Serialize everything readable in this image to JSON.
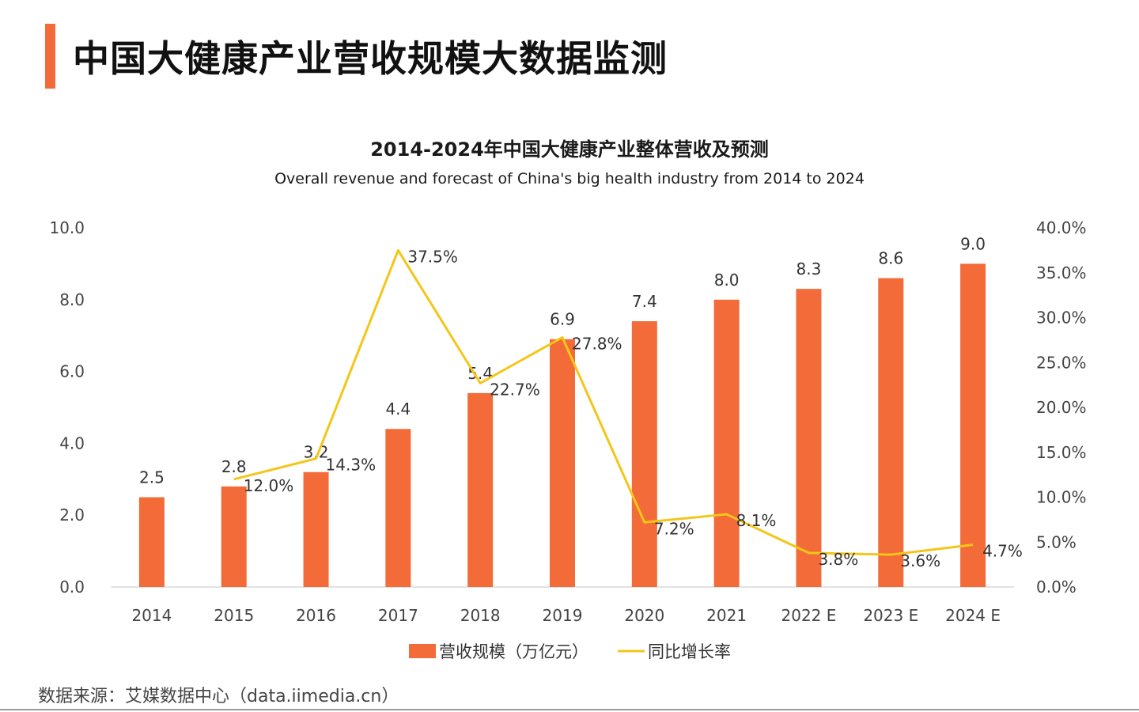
{
  "page": {
    "title": "中国大健康产业营收规模大数据监测",
    "source": "数据来源：艾媒数据中心（data.iimedia.cn）"
  },
  "colors": {
    "accent": "#f26b38",
    "bar": "#f26b38",
    "line": "#f5c518",
    "axis_text": "#444444",
    "baseline": "#d9d9d9"
  },
  "chart_data": {
    "type": "bar",
    "title": "2014-2024年中国大健康产业整体营收及预测",
    "subtitle": "Overall revenue and forecast of China's big health industry from 2014 to 2024",
    "categories": [
      "2014",
      "2015",
      "2016",
      "2017",
      "2018",
      "2019",
      "2020",
      "2021",
      "2022 E",
      "2023 E",
      "2024 E"
    ],
    "series": [
      {
        "name": "营收规模（万亿元）",
        "type": "bar",
        "axis": "left",
        "values": [
          2.5,
          2.8,
          3.2,
          4.4,
          5.4,
          6.9,
          7.4,
          8.0,
          8.3,
          8.6,
          9.0
        ],
        "labels": [
          "2.5",
          "2.8",
          "3.2",
          "4.4",
          "5.4",
          "6.9",
          "7.4",
          "8.0",
          "8.3",
          "8.6",
          "9.0"
        ]
      },
      {
        "name": "同比增长率",
        "type": "line",
        "axis": "right",
        "values": [
          null,
          12.0,
          14.3,
          37.5,
          22.7,
          27.8,
          7.2,
          8.1,
          3.8,
          3.6,
          4.7
        ],
        "labels": [
          "",
          "12.0%",
          "14.3%",
          "37.5%",
          "22.7%",
          "27.8%",
          "7.2%",
          "8.1%",
          "3.8%",
          "3.6%",
          "4.7%"
        ]
      }
    ],
    "y_left": {
      "ylim": [
        0,
        10
      ],
      "ticks": [
        "0.0",
        "2.0",
        "4.0",
        "6.0",
        "8.0",
        "10.0"
      ]
    },
    "y_right": {
      "ylim": [
        0,
        40
      ],
      "ticks": [
        "0.0%",
        "5.0%",
        "10.0%",
        "15.0%",
        "20.0%",
        "25.0%",
        "30.0%",
        "35.0%",
        "40.0%"
      ]
    },
    "grid": false,
    "legend_position": "bottom-center"
  }
}
